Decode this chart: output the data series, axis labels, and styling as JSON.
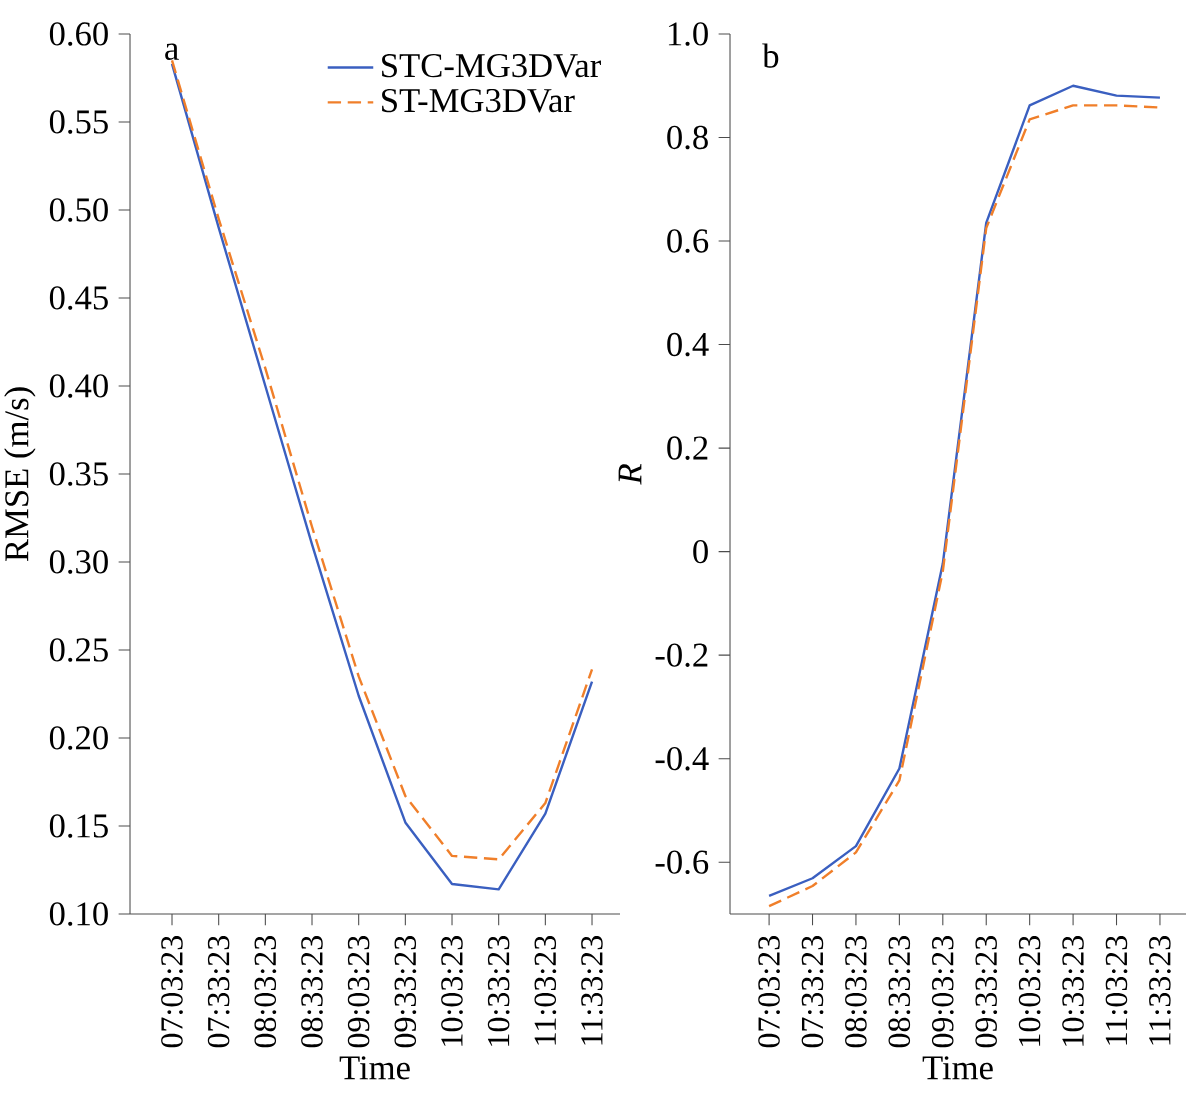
{
  "chart_data": [
    {
      "type": "line",
      "xlabel": "Time",
      "ylabel": "RMSE (m/s)",
      "annotations": [
        "a"
      ],
      "categories": [
        "07:03:23",
        "07:33:23",
        "08:03:23",
        "08:33:23",
        "09:03:23",
        "09:33:23",
        "10:03:23",
        "10:33:23",
        "11:03:23",
        "11:33:23"
      ],
      "series": [
        {
          "name": "STC-MG3DVar",
          "color": "#3a5fc0",
          "line_style": "solid",
          "values": [
            0.583,
            0.49,
            0.4,
            0.31,
            0.224,
            0.152,
            0.117,
            0.114,
            0.157,
            0.232
          ]
        },
        {
          "name": "ST-MG3DVar",
          "color": "#f07f2a",
          "line_style": "dashed",
          "values": [
            0.585,
            0.495,
            0.41,
            0.32,
            0.235,
            0.167,
            0.133,
            0.131,
            0.163,
            0.239
          ]
        }
      ],
      "ylim": [
        0.1,
        0.6
      ],
      "yticks": [
        {
          "value": 0.1,
          "label": "0.10"
        },
        {
          "value": 0.15,
          "label": "0.15"
        },
        {
          "value": 0.2,
          "label": "0.20"
        },
        {
          "value": 0.25,
          "label": "0.25"
        },
        {
          "value": 0.3,
          "label": "0.30"
        },
        {
          "value": 0.35,
          "label": "0.35"
        },
        {
          "value": 0.4,
          "label": "0.40"
        },
        {
          "value": 0.45,
          "label": "0.45"
        },
        {
          "value": 0.5,
          "label": "0.50"
        },
        {
          "value": 0.55,
          "label": "0.55"
        },
        {
          "value": 0.6,
          "label": "0.60"
        }
      ],
      "legend": "top right",
      "grid": false,
      "marker": "none"
    },
    {
      "type": "line",
      "xlabel": "Time",
      "ylabel": "R",
      "annotations": [
        "b"
      ],
      "categories": [
        "07:03:23",
        "07:33:23",
        "08:03:23",
        "08:33:23",
        "09:03:23",
        "09:33:23",
        "10:03:23",
        "10:33:23",
        "11:03:23",
        "11:33:23"
      ],
      "series": [
        {
          "color": "#3a5fc0",
          "line_style": "solid",
          "values": [
            -0.665,
            -0.631,
            -0.569,
            -0.419,
            -0.023,
            0.635,
            0.862,
            0.9,
            0.881,
            0.877
          ]
        },
        {
          "color": "#f07f2a",
          "line_style": "dashed",
          "values": [
            -0.685,
            -0.646,
            -0.581,
            -0.442,
            -0.038,
            0.625,
            0.835,
            0.862,
            0.862,
            0.858
          ]
        }
      ],
      "ylim": [
        -0.7,
        1.0
      ],
      "yticks": [
        {
          "value": -0.6,
          "label": "-0.6"
        },
        {
          "value": -0.4,
          "label": "-0.4"
        },
        {
          "value": -0.2,
          "label": "-0.2"
        },
        {
          "value": 0,
          "label": "0"
        },
        {
          "value": 0.2,
          "label": "0.2"
        },
        {
          "value": 0.4,
          "label": "0.4"
        },
        {
          "value": 0.6,
          "label": "0.6"
        },
        {
          "value": 0.8,
          "label": "0.8"
        },
        {
          "value": 1.0,
          "label": "1.0"
        }
      ],
      "legend": false,
      "grid": false,
      "marker": "none"
    }
  ]
}
